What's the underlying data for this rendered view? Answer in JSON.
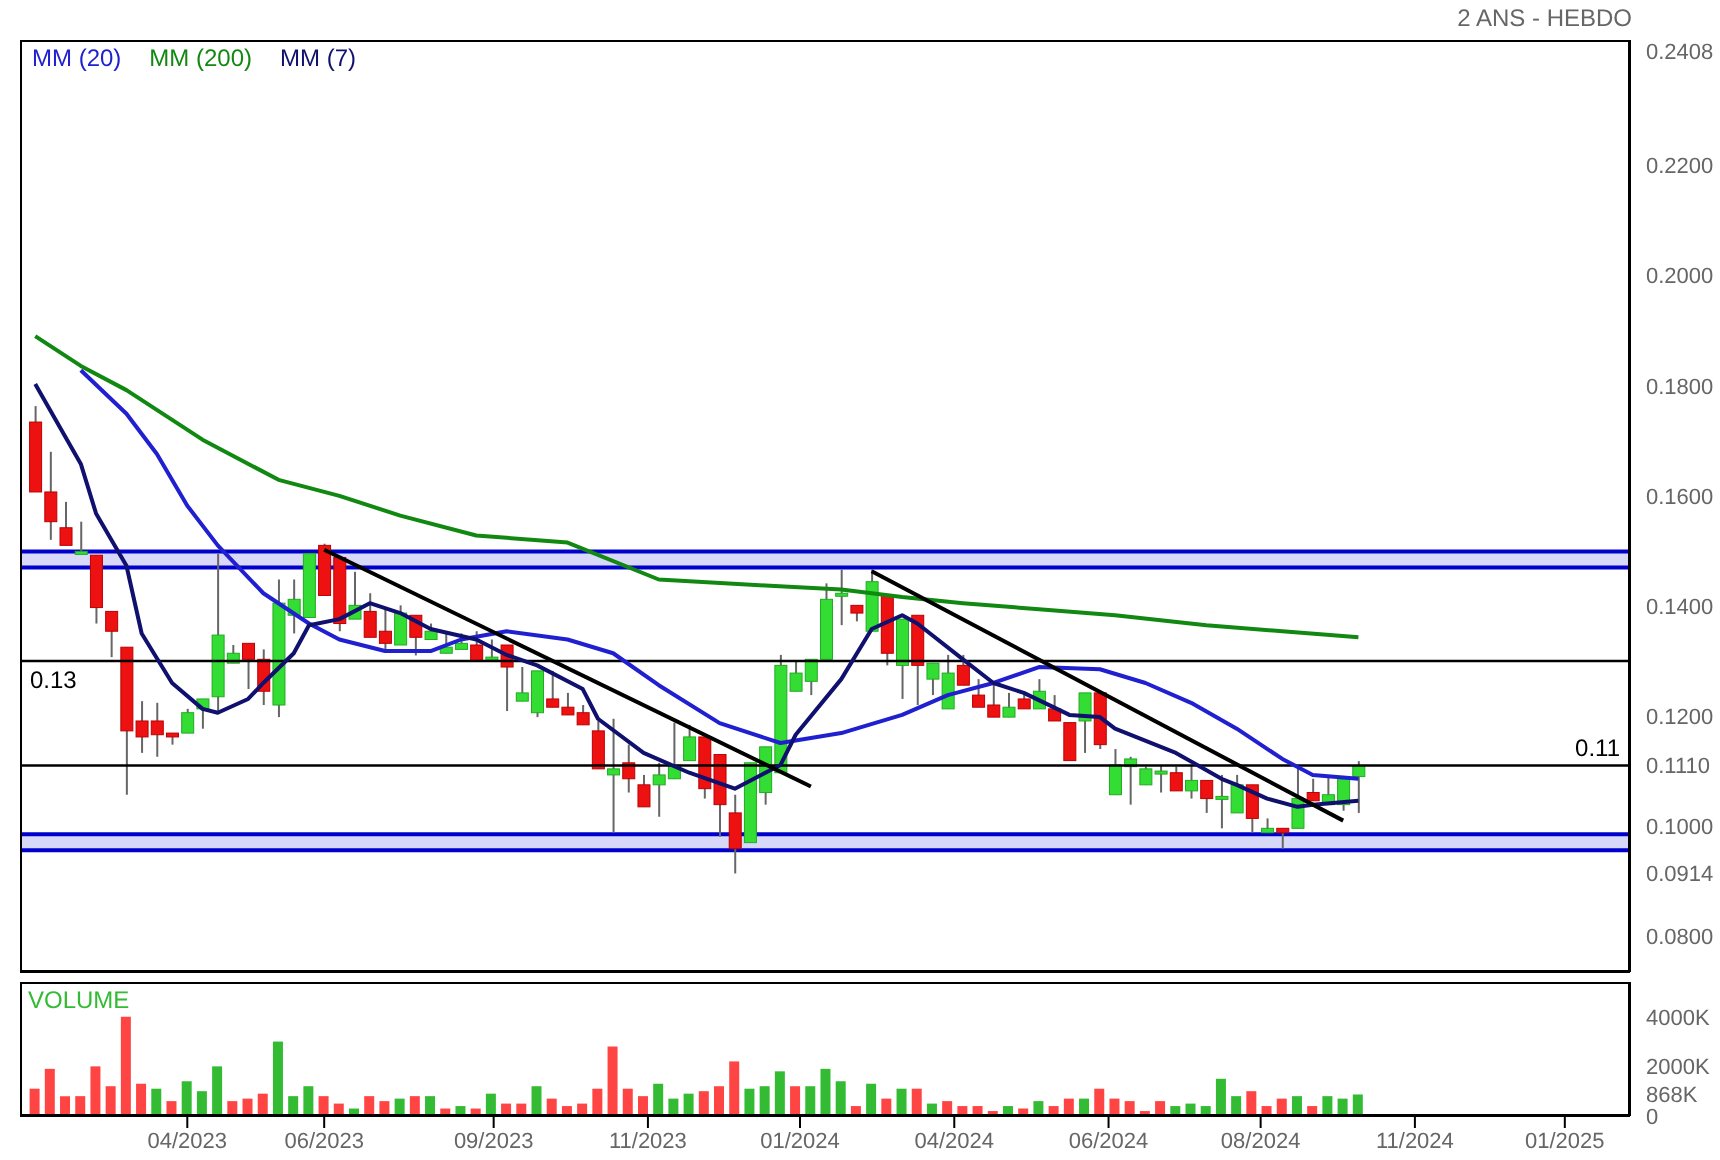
{
  "chart_data": [
    {
      "type": "candlestick",
      "title": "2 ANS - HEBDO",
      "legend": "top left",
      "tick_labels": "y",
      "x": [
        "2023-02-03",
        "2023-02-10",
        "2023-02-17",
        "2023-02-24",
        "2023-03-03",
        "2023-03-10",
        "2023-03-17",
        "2023-03-24",
        "2023-03-31",
        "2023-04-07",
        "2023-04-14",
        "2023-04-21",
        "2023-04-28",
        "2023-05-05",
        "2023-05-12",
        "2023-05-19",
        "2023-05-26",
        "2023-06-02",
        "2023-06-09",
        "2023-06-16",
        "2023-06-23",
        "2023-06-30",
        "2023-07-07",
        "2023-07-14",
        "2023-07-21",
        "2023-07-28",
        "2023-08-04",
        "2023-08-11",
        "2023-08-18",
        "2023-08-25",
        "2023-09-01",
        "2023-09-08",
        "2023-09-15",
        "2023-09-22",
        "2023-09-29",
        "2023-10-06",
        "2023-10-13",
        "2023-10-20",
        "2023-10-27",
        "2023-11-03",
        "2023-11-10",
        "2023-11-17",
        "2023-11-24",
        "2023-12-01",
        "2023-12-08",
        "2023-12-15",
        "2023-12-22",
        "2023-12-29",
        "2024-01-05",
        "2024-01-12",
        "2024-01-19",
        "2024-01-26",
        "2024-02-02",
        "2024-02-09",
        "2024-02-16",
        "2024-02-23",
        "2024-03-01",
        "2024-03-08",
        "2024-03-15",
        "2024-03-22",
        "2024-03-29",
        "2024-04-05",
        "2024-04-12",
        "2024-04-19",
        "2024-04-26",
        "2024-05-03",
        "2024-05-10",
        "2024-05-17",
        "2024-05-24",
        "2024-05-31",
        "2024-06-07",
        "2024-06-14",
        "2024-06-21",
        "2024-06-28",
        "2024-07-05",
        "2024-07-12",
        "2024-07-19",
        "2024-07-26",
        "2024-08-02",
        "2024-08-09",
        "2024-08-16",
        "2024-08-23",
        "2024-08-30",
        "2024-09-06",
        "2024-09-13",
        "2024-09-20",
        "2024-09-27",
        "2024-10-04"
      ],
      "ohlc": [
        [
          0.1734,
          0.1763,
          0.1607,
          0.1607
        ],
        [
          0.1607,
          0.168,
          0.152,
          0.1553
        ],
        [
          0.1542,
          0.1589,
          0.151,
          0.151
        ],
        [
          0.1495,
          0.1553,
          0.1495,
          0.1499
        ],
        [
          0.1492,
          0.1492,
          0.1368,
          0.1397
        ],
        [
          0.139,
          0.139,
          0.1307,
          0.1354
        ],
        [
          0.1325,
          0.1325,
          0.1057,
          0.1173
        ],
        [
          0.1191,
          0.1227,
          0.1133,
          0.1162
        ],
        [
          0.1191,
          0.1224,
          0.1126,
          0.1166
        ],
        [
          0.1169,
          0.1169,
          0.1148,
          0.1162
        ],
        [
          0.1169,
          0.1213,
          0.1169,
          0.1206
        ],
        [
          0.1213,
          0.1231,
          0.1177,
          0.1231
        ],
        [
          0.1235,
          0.1495,
          0.1206,
          0.1347
        ],
        [
          0.1296,
          0.1329,
          0.1296,
          0.1314
        ],
        [
          0.1332,
          0.1332,
          0.1249,
          0.1303
        ],
        [
          0.1303,
          0.1321,
          0.122,
          0.1245
        ],
        [
          0.122,
          0.1448,
          0.1198,
          0.1405
        ],
        [
          0.1383,
          0.1448,
          0.135,
          0.1412
        ],
        [
          0.1379,
          0.1495,
          0.1379,
          0.1495
        ],
        [
          0.151,
          0.1513,
          0.1419,
          0.1419
        ],
        [
          0.1488,
          0.1488,
          0.1354,
          0.1368
        ],
        [
          0.1376,
          0.1462,
          0.1376,
          0.1401
        ],
        [
          0.139,
          0.1423,
          0.1343,
          0.1343
        ],
        [
          0.1354,
          0.1394,
          0.1318,
          0.1332
        ],
        [
          0.1329,
          0.1401,
          0.1329,
          0.1387
        ],
        [
          0.1383,
          0.1383,
          0.131,
          0.1343
        ],
        [
          0.1339,
          0.1368,
          0.1339,
          0.1354
        ],
        [
          0.1314,
          0.135,
          0.1314,
          0.1325
        ],
        [
          0.1321,
          0.135,
          0.1321,
          0.1332
        ],
        [
          0.1329,
          0.1354,
          0.13,
          0.13
        ],
        [
          0.1303,
          0.1339,
          0.1303,
          0.1307
        ],
        [
          0.1329,
          0.1329,
          0.1209,
          0.1289
        ],
        [
          0.1227,
          0.1289,
          0.1227,
          0.1242
        ],
        [
          0.1206,
          0.1282,
          0.1198,
          0.1282
        ],
        [
          0.1231,
          0.1282,
          0.1216,
          0.1216
        ],
        [
          0.1216,
          0.1242,
          0.1202,
          0.1202
        ],
        [
          0.1206,
          0.122,
          0.1184,
          0.1184
        ],
        [
          0.1173,
          0.1191,
          0.1104,
          0.1104
        ],
        [
          0.1093,
          0.1195,
          0.0988,
          0.1104
        ],
        [
          0.1115,
          0.1148,
          0.1061,
          0.1086
        ],
        [
          0.1075,
          0.1093,
          0.1035,
          0.1035
        ],
        [
          0.1075,
          0.1115,
          0.1017,
          0.1093
        ],
        [
          0.1086,
          0.1188,
          0.1086,
          0.1111
        ],
        [
          0.1119,
          0.1184,
          0.1119,
          0.1162
        ],
        [
          0.1162,
          0.1162,
          0.105,
          0.1068
        ],
        [
          0.113,
          0.113,
          0.0981,
          0.1039
        ],
        [
          0.1024,
          0.1057,
          0.0914,
          0.0959
        ],
        [
          0.097,
          0.1115,
          0.097,
          0.1115
        ],
        [
          0.1061,
          0.1144,
          0.1039,
          0.1144
        ],
        [
          0.1097,
          0.1311,
          0.1097,
          0.1292
        ],
        [
          0.1245,
          0.13,
          0.1245,
          0.1278
        ],
        [
          0.1263,
          0.1303,
          0.1238,
          0.1303
        ],
        [
          0.1303,
          0.1441,
          0.1303,
          0.1412
        ],
        [
          0.1419,
          0.1466,
          0.1365,
          0.1423
        ],
        [
          0.1401,
          0.1401,
          0.1372,
          0.1387
        ],
        [
          0.1354,
          0.1466,
          0.1354,
          0.1444
        ],
        [
          0.1419,
          0.1419,
          0.1292,
          0.1314
        ],
        [
          0.1292,
          0.1376,
          0.1231,
          0.1376
        ],
        [
          0.1383,
          0.1383,
          0.122,
          0.1292
        ],
        [
          0.1267,
          0.1296,
          0.1238,
          0.1296
        ],
        [
          0.1213,
          0.1311,
          0.1213,
          0.1278
        ],
        [
          0.1292,
          0.1311,
          0.1256,
          0.1256
        ],
        [
          0.1238,
          0.1267,
          0.1216,
          0.1216
        ],
        [
          0.122,
          0.126,
          0.1198,
          0.1198
        ],
        [
          0.1198,
          0.1242,
          0.1198,
          0.1216
        ],
        [
          0.1231,
          0.1242,
          0.1213,
          0.1213
        ],
        [
          0.1213,
          0.1267,
          0.1213,
          0.1245
        ],
        [
          0.1213,
          0.1238,
          0.1191,
          0.1191
        ],
        [
          0.1188,
          0.1188,
          0.1119,
          0.1119
        ],
        [
          0.1191,
          0.1242,
          0.1133,
          0.1242
        ],
        [
          0.1242,
          0.1242,
          0.114,
          0.1148
        ],
        [
          0.1057,
          0.114,
          0.1057,
          0.1111
        ],
        [
          0.1108,
          0.1126,
          0.1039,
          0.1122
        ],
        [
          0.1075,
          0.1108,
          0.1075,
          0.1104
        ],
        [
          0.1097,
          0.1111,
          0.1061,
          0.11
        ],
        [
          0.1097,
          0.1108,
          0.1064,
          0.1064
        ],
        [
          0.1064,
          0.1111,
          0.105,
          0.1083
        ],
        [
          0.1083,
          0.1083,
          0.1024,
          0.105
        ],
        [
          0.105,
          0.1093,
          0.0996,
          0.1054
        ],
        [
          0.1024,
          0.1093,
          0.1024,
          0.1075
        ],
        [
          0.1075,
          0.1075,
          0.0988,
          0.1014
        ],
        [
          0.0988,
          0.1014,
          0.0988,
          0.0996
        ],
        [
          0.0996,
          0.0996,
          0.0959,
          0.0988
        ],
        [
          0.0996,
          0.1111,
          0.0996,
          0.105
        ],
        [
          0.1061,
          0.1086,
          0.1046,
          0.1046
        ],
        [
          0.1039,
          0.1093,
          0.1039,
          0.1057
        ],
        [
          0.1039,
          0.1086,
          0.1028,
          0.1086
        ],
        [
          0.109,
          0.1118,
          0.1024,
          0.111
        ]
      ],
      "series": [
        {
          "name": "MM (20)",
          "type": "line",
          "color": "#2020d0",
          "x": [
            "2023-02-24",
            "2023-03-17",
            "2023-03-31",
            "2023-04-14",
            "2023-04-28",
            "2023-05-19",
            "2023-06-09",
            "2023-06-23",
            "2023-07-14",
            "2023-08-04",
            "2023-08-18",
            "2023-09-08",
            "2023-10-06",
            "2023-10-27",
            "2023-11-17",
            "2023-12-15",
            "2024-01-12",
            "2024-02-09",
            "2024-03-08",
            "2024-03-29",
            "2024-04-19",
            "2024-05-10",
            "2024-06-07",
            "2024-06-28",
            "2024-07-19",
            "2024-08-09",
            "2024-08-30",
            "2024-09-13",
            "2024-10-04"
          ],
          "values": [
            0.1828,
            0.1749,
            0.1676,
            0.1582,
            0.151,
            0.1423,
            0.1368,
            0.1339,
            0.1318,
            0.1318,
            0.1339,
            0.1354,
            0.1339,
            0.1314,
            0.1256,
            0.1187,
            0.1151,
            0.1169,
            0.1202,
            0.1238,
            0.126,
            0.1289,
            0.1285,
            0.126,
            0.1224,
            0.1177,
            0.1122,
            0.1093,
            0.1086
          ]
        },
        {
          "name": "MM (200)",
          "type": "line",
          "color": "#118811",
          "x": [
            "2023-02-03",
            "2023-02-24",
            "2023-03-17",
            "2023-04-21",
            "2023-05-26",
            "2023-06-23",
            "2023-07-21",
            "2023-08-25",
            "2023-10-06",
            "2023-11-17",
            "2024-01-05",
            "2024-02-09",
            "2024-03-08",
            "2024-04-05",
            "2024-05-10",
            "2024-06-14",
            "2024-07-26",
            "2024-08-30",
            "2024-10-04"
          ],
          "values": [
            0.189,
            0.1836,
            0.1792,
            0.1702,
            0.1629,
            0.16,
            0.1564,
            0.1528,
            0.1515,
            0.1448,
            0.1437,
            0.143,
            0.1416,
            0.1405,
            0.1394,
            0.1383,
            0.1365,
            0.1354,
            0.1343
          ]
        },
        {
          "name": "MM (7)",
          "type": "line",
          "color": "#10106e",
          "x": [
            "2023-02-03",
            "2023-02-24",
            "2023-03-03",
            "2023-03-17",
            "2023-03-24",
            "2023-04-07",
            "2023-04-21",
            "2023-04-28",
            "2023-05-12",
            "2023-05-19",
            "2023-06-02",
            "2023-06-09",
            "2023-06-23",
            "2023-07-07",
            "2023-07-21",
            "2023-08-04",
            "2023-08-25",
            "2023-09-08",
            "2023-09-22",
            "2023-10-13",
            "2023-10-20",
            "2023-11-10",
            "2023-12-01",
            "2023-12-22",
            "2024-01-12",
            "2024-01-19",
            "2024-02-09",
            "2024-02-23",
            "2024-03-08",
            "2024-03-15",
            "2024-04-05",
            "2024-04-19",
            "2024-05-03",
            "2024-05-24",
            "2024-06-07",
            "2024-06-14",
            "2024-07-12",
            "2024-08-02",
            "2024-08-09",
            "2024-08-23",
            "2024-09-06",
            "2024-09-13",
            "2024-10-04"
          ],
          "values": [
            0.1803,
            0.1658,
            0.1568,
            0.1473,
            0.135,
            0.126,
            0.1213,
            0.1206,
            0.1231,
            0.126,
            0.1314,
            0.1365,
            0.1376,
            0.1405,
            0.1387,
            0.1358,
            0.1339,
            0.1311,
            0.1292,
            0.1249,
            0.1195,
            0.1133,
            0.1097,
            0.1068,
            0.1111,
            0.1166,
            0.1267,
            0.1358,
            0.1383,
            0.1368,
            0.1303,
            0.126,
            0.1242,
            0.1202,
            0.1198,
            0.1177,
            0.1133,
            0.1086,
            0.1075,
            0.105,
            0.1035,
            0.1039,
            0.1046
          ]
        },
        {
          "type": "line",
          "color": "#000000",
          "x": [
            "2023-06-16",
            "2024-01-26"
          ],
          "values": [
            0.1502,
            0.1072
          ]
        },
        {
          "type": "line",
          "color": "#000000",
          "x": [
            "2024-02-23",
            "2024-09-27"
          ],
          "values": [
            0.1463,
            0.101
          ]
        }
      ],
      "ref_lines": [
        {
          "axis": "y",
          "value": 0.13,
          "label": "0.13",
          "color": "#000000"
        },
        {
          "axis": "y",
          "value": 0.111,
          "label": "0.11",
          "color": "#000000"
        }
      ],
      "bands": [
        {
          "axis": "y",
          "from": 0.147,
          "to": 0.1499,
          "color": "#d8d8f8"
        },
        {
          "axis": "y",
          "from": 0.0956,
          "to": 0.0985,
          "color": "#d8d8f8"
        }
      ],
      "ylim": [
        0.0735,
        0.2428
      ],
      "yticks": [
        {
          "value": 0.08,
          "label": "0.0800"
        },
        {
          "value": 0.0914,
          "label": "0.0914"
        },
        {
          "value": 0.1,
          "label": "0.1000"
        },
        {
          "value": 0.111,
          "label": "0.1110"
        },
        {
          "value": 0.12,
          "label": "0.1200"
        },
        {
          "value": 0.14,
          "label": "0.1400"
        },
        {
          "value": 0.16,
          "label": "0.1600"
        },
        {
          "value": 0.18,
          "label": "0.1800"
        },
        {
          "value": 0.2,
          "label": "0.2000"
        },
        {
          "value": 0.22,
          "label": "0.2200"
        },
        {
          "value": 0.2408,
          "label": "0.2408"
        }
      ],
      "xlim": [
        "2023-01-27",
        "2025-02-06"
      ]
    },
    {
      "type": "bar",
      "title": "VOLUME",
      "x": [
        "2023-02-03",
        "2023-02-10",
        "2023-02-17",
        "2023-02-24",
        "2023-03-03",
        "2023-03-10",
        "2023-03-17",
        "2023-03-24",
        "2023-03-31",
        "2023-04-07",
        "2023-04-14",
        "2023-04-21",
        "2023-04-28",
        "2023-05-05",
        "2023-05-12",
        "2023-05-19",
        "2023-05-26",
        "2023-06-02",
        "2023-06-09",
        "2023-06-16",
        "2023-06-23",
        "2023-06-30",
        "2023-07-07",
        "2023-07-14",
        "2023-07-21",
        "2023-07-28",
        "2023-08-04",
        "2023-08-11",
        "2023-08-18",
        "2023-08-25",
        "2023-09-01",
        "2023-09-08",
        "2023-09-15",
        "2023-09-22",
        "2023-09-29",
        "2023-10-06",
        "2023-10-13",
        "2023-10-20",
        "2023-10-27",
        "2023-11-03",
        "2023-11-10",
        "2023-11-17",
        "2023-11-24",
        "2023-12-01",
        "2023-12-08",
        "2023-12-15",
        "2023-12-22",
        "2023-12-29",
        "2024-01-05",
        "2024-01-12",
        "2024-01-19",
        "2024-01-26",
        "2024-02-02",
        "2024-02-09",
        "2024-02-16",
        "2024-02-23",
        "2024-03-01",
        "2024-03-08",
        "2024-03-15",
        "2024-03-22",
        "2024-03-29",
        "2024-04-05",
        "2024-04-12",
        "2024-04-19",
        "2024-04-26",
        "2024-05-03",
        "2024-05-10",
        "2024-05-17",
        "2024-05-24",
        "2024-05-31",
        "2024-06-07",
        "2024-06-14",
        "2024-06-21",
        "2024-06-28",
        "2024-07-05",
        "2024-07-12",
        "2024-07-19",
        "2024-07-26",
        "2024-08-02",
        "2024-08-09",
        "2024-08-16",
        "2024-08-23",
        "2024-08-30",
        "2024-09-06",
        "2024-09-13",
        "2024-09-20",
        "2024-09-27",
        "2024-10-04"
      ],
      "values": [
        1100,
        1900,
        800,
        800,
        2000,
        1200,
        4000,
        1300,
        1100,
        600,
        1400,
        1000,
        2000,
        600,
        700,
        900,
        3000,
        800,
        1200,
        800,
        500,
        300,
        800,
        600,
        700,
        800,
        800,
        300,
        400,
        300,
        900,
        500,
        500,
        1200,
        700,
        400,
        500,
        1100,
        2800,
        1100,
        800,
        1300,
        700,
        900,
        1000,
        1200,
        2200,
        1100,
        1200,
        1800,
        1200,
        1200,
        1900,
        1400,
        400,
        1300,
        700,
        1100,
        1100,
        500,
        600,
        400,
        400,
        200,
        400,
        300,
        600,
        400,
        700,
        700,
        1100,
        700,
        600,
        200,
        600,
        400,
        500,
        400,
        1500,
        800,
        1000,
        400,
        700,
        800,
        400,
        800,
        700,
        868
      ],
      "colors": [
        "#ff4444",
        "#ff4444",
        "#ff4444",
        "#ff4444",
        "#ff4444",
        "#ff4444",
        "#ff4444",
        "#ff4444",
        "#33bb33",
        "#ff4444",
        "#33bb33",
        "#33bb33",
        "#33bb33",
        "#ff4444",
        "#ff4444",
        "#ff4444",
        "#33bb33",
        "#33bb33",
        "#33bb33",
        "#ff4444",
        "#ff4444",
        "#33bb33",
        "#ff4444",
        "#ff4444",
        "#33bb33",
        "#ff4444",
        "#33bb33",
        "#ff4444",
        "#33bb33",
        "#ff4444",
        "#33bb33",
        "#ff4444",
        "#ff4444",
        "#33bb33",
        "#ff4444",
        "#ff4444",
        "#ff4444",
        "#ff4444",
        "#ff4444",
        "#ff4444",
        "#ff4444",
        "#33bb33",
        "#33bb33",
        "#33bb33",
        "#ff4444",
        "#ff4444",
        "#ff4444",
        "#33bb33",
        "#33bb33",
        "#33bb33",
        "#ff4444",
        "#33bb33",
        "#33bb33",
        "#33bb33",
        "#ff4444",
        "#33bb33",
        "#ff4444",
        "#33bb33",
        "#ff4444",
        "#33bb33",
        "#ff4444",
        "#ff4444",
        "#ff4444",
        "#ff4444",
        "#33bb33",
        "#ff4444",
        "#33bb33",
        "#ff4444",
        "#ff4444",
        "#33bb33",
        "#ff4444",
        "#ff4444",
        "#ff4444",
        "#ff4444",
        "#ff4444",
        "#33bb33",
        "#33bb33",
        "#33bb33",
        "#33bb33",
        "#33bb33",
        "#ff4444",
        "#ff4444",
        "#ff4444",
        "#33bb33",
        "#ff4444",
        "#33bb33",
        "#33bb33",
        "#33bb33"
      ],
      "ylim": [
        0,
        5400
      ],
      "yticks": [
        0,
        {
          "value": 868,
          "label": "868K"
        },
        {
          "value": 2000,
          "label": "2000K"
        },
        {
          "value": 4000,
          "label": "4000K"
        }
      ],
      "xlim": [
        "2023-01-27",
        "2025-02-06"
      ],
      "xticks": [
        {
          "value": "2023-04-14",
          "label": "04/2023"
        },
        {
          "value": "2023-06-16",
          "label": "06/2023"
        },
        {
          "value": "2023-09-02",
          "label": "09/2023"
        },
        {
          "value": "2023-11-12",
          "label": "11/2023"
        },
        {
          "value": "2024-01-21",
          "label": "01/2024"
        },
        {
          "value": "2024-04-01",
          "label": "04/2024"
        },
        {
          "value": "2024-06-11",
          "label": "06/2024"
        },
        {
          "value": "2024-08-20",
          "label": "08/2024"
        },
        {
          "value": "2024-10-30",
          "label": "11/2024"
        },
        {
          "value": "2025-01-07",
          "label": "01/2025"
        }
      ]
    }
  ]
}
